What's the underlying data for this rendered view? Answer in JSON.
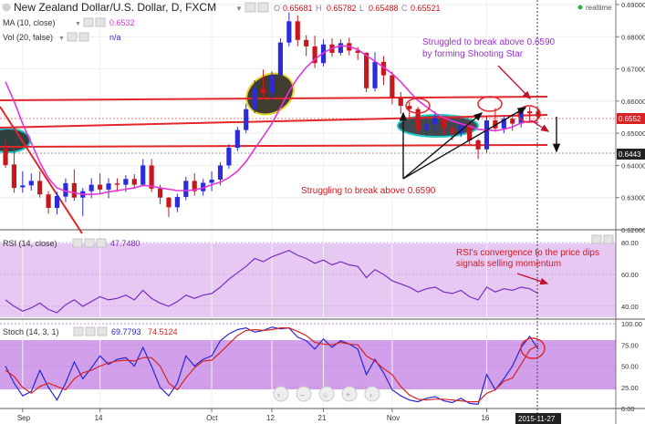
{
  "header": {
    "title": "New Zealand Dollar/U.S. Dollar, D, FXCM",
    "ohlc": [
      "0.65681",
      "0.65782",
      "0.65488",
      "0.65521"
    ],
    "realtime": "realtime"
  },
  "legend": {
    "ma_label": "MA (10, close)",
    "ma_value": "0.6532",
    "vol_label": "Vol (20, false)",
    "vol_value": "n/a"
  },
  "annotations": {
    "shooting_star_1": "Struggled to break above 0.6590",
    "shooting_star_2": "by forming Shooting Star",
    "struggling": "Struggling to break above 0.6590",
    "rsi_note_1": "RSI's convergence to the price dips",
    "rsi_note_2": "signals selling momentum"
  },
  "price_badges": {
    "last": "0.6552",
    "level": "0.6443"
  },
  "rsi_panel": {
    "label": "RSI (14, close)",
    "value": "47.7480"
  },
  "stoch_panel": {
    "label": "Stoch (14, 3, 1)",
    "value_k": "69.7793",
    "value_d": "74.5124"
  },
  "date_badge": "2015-11-27",
  "colors": {
    "up": "#2b2bd9",
    "down": "#c8171c",
    "ma": "#e336d9",
    "resistance": "#e3262a",
    "rsi": "#7a2dbf",
    "stoch_k": "#2727d6",
    "stoch_d": "#d42424",
    "panel_fill": "#e7c8f3",
    "stoch_fill": "#d2a0ea"
  },
  "chart_data": [
    {
      "type": "candlestick",
      "title": "New Zealand Dollar/U.S. Dollar, D, FXCM",
      "x_ticks": [
        "Sep",
        "14",
        "Oct",
        "12",
        "21",
        "Nov",
        "16"
      ],
      "y_ticks": [
        "0.69000",
        "0.68000",
        "0.67000",
        "0.66000",
        "0.65000",
        "0.64000",
        "0.63000",
        "0.62000"
      ],
      "ylim": [
        0.62,
        0.69
      ],
      "resistance_level": 0.659,
      "candles": [
        {
          "o": 0.6452,
          "h": 0.6478,
          "l": 0.6393,
          "c": 0.6401
        },
        {
          "o": 0.6403,
          "h": 0.6455,
          "l": 0.6315,
          "c": 0.633
        },
        {
          "o": 0.6332,
          "h": 0.6382,
          "l": 0.6315,
          "c": 0.6338
        },
        {
          "o": 0.6338,
          "h": 0.6375,
          "l": 0.6322,
          "c": 0.6352
        },
        {
          "o": 0.6352,
          "h": 0.6382,
          "l": 0.63,
          "c": 0.631
        },
        {
          "o": 0.631,
          "h": 0.632,
          "l": 0.625,
          "c": 0.6268
        },
        {
          "o": 0.6268,
          "h": 0.6318,
          "l": 0.6248,
          "c": 0.6305
        },
        {
          "o": 0.6303,
          "h": 0.636,
          "l": 0.6286,
          "c": 0.6345
        },
        {
          "o": 0.6345,
          "h": 0.6388,
          "l": 0.629,
          "c": 0.63
        },
        {
          "o": 0.63,
          "h": 0.633,
          "l": 0.6242,
          "c": 0.632
        },
        {
          "o": 0.632,
          "h": 0.636,
          "l": 0.6298,
          "c": 0.634
        },
        {
          "o": 0.634,
          "h": 0.6375,
          "l": 0.631,
          "c": 0.6325
        },
        {
          "o": 0.6325,
          "h": 0.636,
          "l": 0.6298,
          "c": 0.6344
        },
        {
          "o": 0.6344,
          "h": 0.636,
          "l": 0.6318,
          "c": 0.634
        },
        {
          "o": 0.634,
          "h": 0.637,
          "l": 0.6318,
          "c": 0.6358
        },
        {
          "o": 0.6358,
          "h": 0.6373,
          "l": 0.6328,
          "c": 0.634
        },
        {
          "o": 0.634,
          "h": 0.642,
          "l": 0.6335,
          "c": 0.64
        },
        {
          "o": 0.64,
          "h": 0.642,
          "l": 0.6318,
          "c": 0.6328
        },
        {
          "o": 0.6328,
          "h": 0.634,
          "l": 0.628,
          "c": 0.63
        },
        {
          "o": 0.63,
          "h": 0.6302,
          "l": 0.624,
          "c": 0.627
        },
        {
          "o": 0.627,
          "h": 0.6312,
          "l": 0.6255,
          "c": 0.6302
        },
        {
          "o": 0.6302,
          "h": 0.6365,
          "l": 0.6292,
          "c": 0.6352
        },
        {
          "o": 0.6352,
          "h": 0.6376,
          "l": 0.6306,
          "c": 0.632
        },
        {
          "o": 0.632,
          "h": 0.6358,
          "l": 0.6306,
          "c": 0.6346
        },
        {
          "o": 0.6346,
          "h": 0.6382,
          "l": 0.632,
          "c": 0.6356
        },
        {
          "o": 0.6356,
          "h": 0.641,
          "l": 0.6338,
          "c": 0.64
        },
        {
          "o": 0.64,
          "h": 0.6466,
          "l": 0.639,
          "c": 0.6455
        },
        {
          "o": 0.6455,
          "h": 0.652,
          "l": 0.6445,
          "c": 0.651
        },
        {
          "o": 0.651,
          "h": 0.6592,
          "l": 0.65,
          "c": 0.6575
        },
        {
          "o": 0.6575,
          "h": 0.6665,
          "l": 0.6563,
          "c": 0.664
        },
        {
          "o": 0.664,
          "h": 0.6698,
          "l": 0.6606,
          "c": 0.6625
        },
        {
          "o": 0.6625,
          "h": 0.6692,
          "l": 0.6605,
          "c": 0.668
        },
        {
          "o": 0.668,
          "h": 0.6795,
          "l": 0.6668,
          "c": 0.6782
        },
        {
          "o": 0.6782,
          "h": 0.6875,
          "l": 0.677,
          "c": 0.6848
        },
        {
          "o": 0.6848,
          "h": 0.6866,
          "l": 0.677,
          "c": 0.679
        },
        {
          "o": 0.679,
          "h": 0.6805,
          "l": 0.674,
          "c": 0.677
        },
        {
          "o": 0.677,
          "h": 0.6803,
          "l": 0.6703,
          "c": 0.6718
        },
        {
          "o": 0.6718,
          "h": 0.6792,
          "l": 0.6708,
          "c": 0.6776
        },
        {
          "o": 0.6776,
          "h": 0.6795,
          "l": 0.6738,
          "c": 0.675
        },
        {
          "o": 0.675,
          "h": 0.6792,
          "l": 0.6742,
          "c": 0.678
        },
        {
          "o": 0.678,
          "h": 0.6797,
          "l": 0.6742,
          "c": 0.6757
        },
        {
          "o": 0.6757,
          "h": 0.6768,
          "l": 0.6728,
          "c": 0.675
        },
        {
          "o": 0.675,
          "h": 0.6752,
          "l": 0.6628,
          "c": 0.664
        },
        {
          "o": 0.664,
          "h": 0.6752,
          "l": 0.663,
          "c": 0.6722
        },
        {
          "o": 0.6722,
          "h": 0.674,
          "l": 0.665,
          "c": 0.668
        },
        {
          "o": 0.668,
          "h": 0.6692,
          "l": 0.659,
          "c": 0.661
        },
        {
          "o": 0.661,
          "h": 0.6628,
          "l": 0.656,
          "c": 0.6585
        },
        {
          "o": 0.6585,
          "h": 0.6597,
          "l": 0.6548,
          "c": 0.6575
        },
        {
          "o": 0.6575,
          "h": 0.6582,
          "l": 0.6498,
          "c": 0.651
        },
        {
          "o": 0.651,
          "h": 0.655,
          "l": 0.6492,
          "c": 0.6528
        },
        {
          "o": 0.6528,
          "h": 0.6568,
          "l": 0.6508,
          "c": 0.6548
        },
        {
          "o": 0.6548,
          "h": 0.655,
          "l": 0.6496,
          "c": 0.6516
        },
        {
          "o": 0.6516,
          "h": 0.6525,
          "l": 0.6478,
          "c": 0.65
        },
        {
          "o": 0.65,
          "h": 0.654,
          "l": 0.6488,
          "c": 0.6525
        },
        {
          "o": 0.6525,
          "h": 0.6535,
          "l": 0.6466,
          "c": 0.6478
        },
        {
          "o": 0.6478,
          "h": 0.6482,
          "l": 0.642,
          "c": 0.645
        },
        {
          "o": 0.645,
          "h": 0.6555,
          "l": 0.644,
          "c": 0.654
        },
        {
          "o": 0.654,
          "h": 0.6578,
          "l": 0.6505,
          "c": 0.6515
        },
        {
          "o": 0.6515,
          "h": 0.6555,
          "l": 0.65,
          "c": 0.6545
        },
        {
          "o": 0.6545,
          "h": 0.656,
          "l": 0.6508,
          "c": 0.653
        },
        {
          "o": 0.653,
          "h": 0.658,
          "l": 0.6518,
          "c": 0.6568
        },
        {
          "o": 0.6568,
          "h": 0.6582,
          "l": 0.654,
          "c": 0.6562
        },
        {
          "o": 0.6568,
          "h": 0.6578,
          "l": 0.6549,
          "c": 0.6552
        }
      ],
      "ma_10": [
        0.666,
        0.66,
        0.653,
        0.647,
        0.641,
        0.636,
        0.633,
        0.632,
        0.6315,
        0.631,
        0.631,
        0.6312,
        0.6318,
        0.6322,
        0.6326,
        0.633,
        0.6338,
        0.6336,
        0.633,
        0.6326,
        0.6322,
        0.6322,
        0.6324,
        0.633,
        0.634,
        0.6348,
        0.6362,
        0.6382,
        0.6412,
        0.6452,
        0.649,
        0.653,
        0.658,
        0.663,
        0.6672,
        0.6705,
        0.673,
        0.675,
        0.6764,
        0.6772,
        0.677,
        0.676,
        0.6742,
        0.6724,
        0.6705,
        0.6685,
        0.666,
        0.663,
        0.6602,
        0.6582,
        0.6562,
        0.6548,
        0.6538,
        0.653,
        0.6522,
        0.6512,
        0.651,
        0.6508,
        0.6512,
        0.652,
        0.6532,
        0.6538,
        0.6532
      ]
    },
    {
      "type": "line",
      "title": "RSI (14, close)",
      "y_ticks": [
        "80.00",
        "60.00",
        "40.00"
      ],
      "ylim": [
        30,
        80
      ],
      "values": [
        44,
        40,
        37,
        39,
        42,
        38,
        36,
        41,
        44,
        40,
        43,
        46,
        44,
        45,
        47,
        44,
        50,
        45,
        42,
        40,
        43,
        47,
        45,
        47,
        48,
        52,
        57,
        61,
        65,
        70,
        68,
        71,
        73,
        75,
        72,
        70,
        67,
        69,
        66,
        68,
        66,
        65,
        58,
        63,
        60,
        56,
        54,
        52,
        49,
        51,
        52,
        49,
        48,
        50,
        46,
        44,
        52,
        49,
        51,
        50,
        52,
        51,
        48
      ]
    },
    {
      "type": "line",
      "title": "Stoch (14, 3, 1)",
      "y_ticks": [
        "100.00",
        "75.00",
        "50.00",
        "25.00",
        "0.00"
      ],
      "ylim": [
        0,
        100
      ],
      "series": [
        {
          "values": [
            50,
            30,
            15,
            20,
            45,
            25,
            10,
            30,
            55,
            35,
            48,
            62,
            52,
            58,
            60,
            50,
            72,
            50,
            25,
            15,
            30,
            62,
            50,
            58,
            62,
            80,
            88,
            93,
            95,
            90,
            92,
            96,
            94,
            95,
            84,
            80,
            70,
            82,
            72,
            80,
            76,
            70,
            40,
            58,
            42,
            22,
            15,
            10,
            8,
            12,
            14,
            9,
            7,
            12,
            6,
            5,
            40,
            22,
            35,
            50,
            72,
            85,
            69.78
          ]
        },
        {
          "values": [
            45,
            38,
            25,
            18,
            26,
            30,
            26,
            22,
            35,
            42,
            45,
            50,
            54,
            56,
            57,
            56,
            60,
            60,
            50,
            30,
            22,
            36,
            48,
            56,
            57,
            66,
            76,
            86,
            92,
            93,
            92,
            93,
            95,
            95,
            91,
            86,
            78,
            76,
            75,
            78,
            76,
            75,
            62,
            56,
            47,
            40,
            26,
            16,
            11,
            10,
            11,
            11,
            10,
            9,
            8,
            8,
            18,
            22,
            32,
            36,
            52,
            69,
            74.51
          ]
        }
      ]
    }
  ]
}
